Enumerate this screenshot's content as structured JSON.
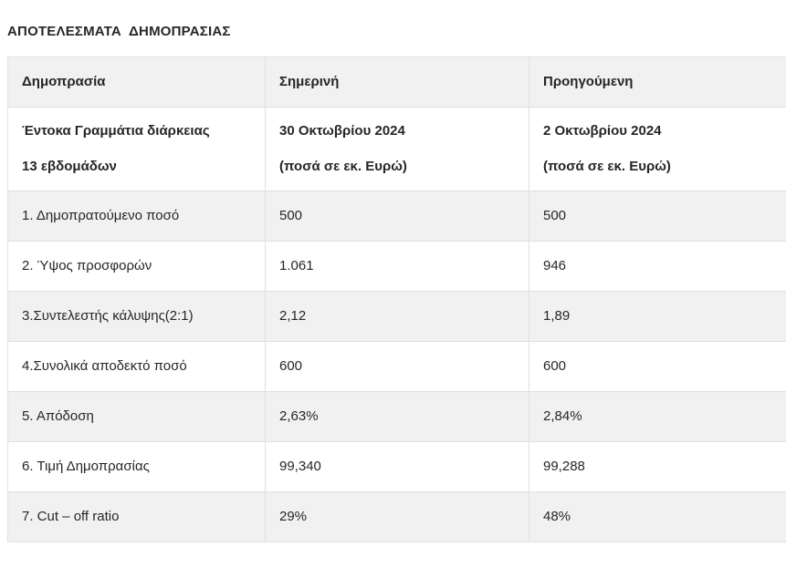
{
  "page_title": "ΑΠΟΤΕΛΕΣΜΑΤΑ  ΔΗΜΟΠΡΑΣΙΑΣ",
  "colors": {
    "stripe": "#f1f1f1",
    "border": "#e0e0e0",
    "text": "#262626"
  },
  "table": {
    "header": [
      "Δημοπρασία",
      "Σημερινή",
      "Προηγούμενη"
    ],
    "subheader": {
      "col1": [
        "Έντοκα Γραμμάτια διάρκειας",
        "13 εβδομάδων"
      ],
      "col2": [
        "30 Οκτωβρίου 2024",
        "(ποσά σε εκ. Ευρώ)"
      ],
      "col3": [
        "2 Οκτωβρίου 2024",
        "(ποσά σε εκ. Ευρώ)"
      ]
    },
    "rows": [
      {
        "label": "1. Δημοπρατούμενο ποσό",
        "current": "500",
        "previous": "500"
      },
      {
        "label": "2. Ύψος προσφορών",
        "current": "1.061",
        "previous": "946"
      },
      {
        "label": "3.Συντελεστής κάλυψης(2:1)",
        "current": "2,12",
        "previous": "1,89"
      },
      {
        "label": "4.Συνολικά αποδεκτό ποσό",
        "current": "600",
        "previous": "600"
      },
      {
        "label": "5. Απόδοση",
        "current": "2,63%",
        "previous": "2,84%"
      },
      {
        "label": "6. Τιμή Δημοπρασίας",
        "current": "99,340",
        "previous": "99,288"
      },
      {
        "label": "7. Cut – off ratio",
        "current": "29%",
        "previous": "48%"
      }
    ]
  }
}
